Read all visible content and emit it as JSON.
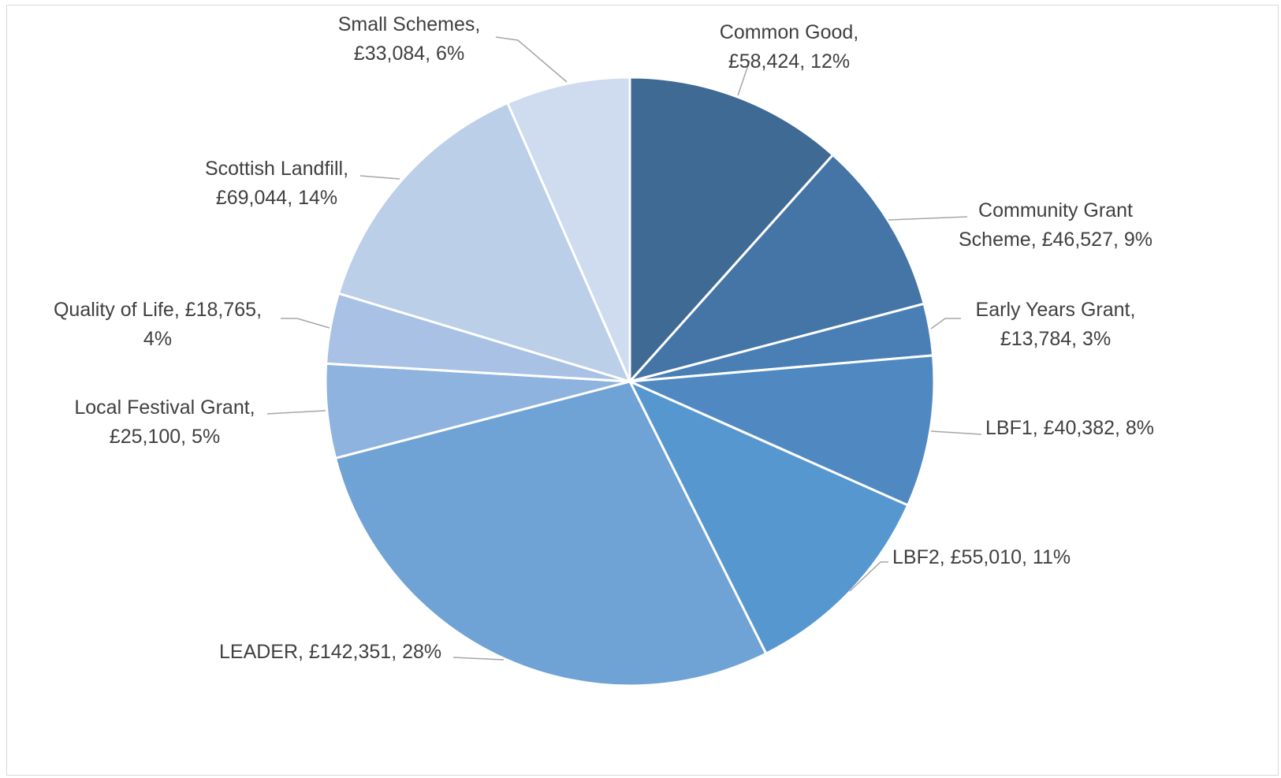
{
  "chart_data": {
    "type": "pie",
    "title": "",
    "value_prefix": "£",
    "slices": [
      {
        "label": "Common Good",
        "value": 58424,
        "percent": 12,
        "color": "#3e6a94",
        "text_lines": [
          "Common Good,",
          "£58,424, 12%"
        ]
      },
      {
        "label": "Community Grant Scheme",
        "value": 46527,
        "percent": 9,
        "color": "#4475a6",
        "text_lines": [
          "Community Grant",
          "Scheme, £46,527, 9%"
        ]
      },
      {
        "label": "Early Years Grant",
        "value": 13784,
        "percent": 3,
        "color": "#4a7fb6",
        "text_lines": [
          "Early Years Grant,",
          "£13,784, 3%"
        ]
      },
      {
        "label": "LBF1",
        "value": 40382,
        "percent": 8,
        "color": "#5089c2",
        "text_lines": [
          "LBF1, £40,382, 8%"
        ]
      },
      {
        "label": "LBF2",
        "value": 55010,
        "percent": 11,
        "color": "#5797cf",
        "text_lines": [
          "LBF2, £55,010, 11%"
        ]
      },
      {
        "label": "LEADER",
        "value": 142351,
        "percent": 28,
        "color": "#6fa2d5",
        "text_lines": [
          "LEADER, £142,351, 28%"
        ]
      },
      {
        "label": "Local Festival Grant",
        "value": 25100,
        "percent": 5,
        "color": "#8eb3de",
        "text_lines": [
          "Local Festival Grant,",
          "£25,100, 5%"
        ]
      },
      {
        "label": "Quality of Life",
        "value": 18765,
        "percent": 4,
        "color": "#a8c1e4",
        "text_lines": [
          "Quality of Life, £18,765,",
          "4%"
        ]
      },
      {
        "label": "Scottish Landfill",
        "value": 69044,
        "percent": 14,
        "color": "#bccfe8",
        "text_lines": [
          "Scottish Landfill,",
          "£69,044, 14%"
        ]
      },
      {
        "label": "Small Schemes",
        "value": 33084,
        "percent": 6,
        "color": "#cfdcef",
        "text_lines": [
          "Small Schemes,",
          "£33,084, 6%"
        ]
      }
    ],
    "legend": "none",
    "data_labels": "outside-with-leader-lines"
  }
}
